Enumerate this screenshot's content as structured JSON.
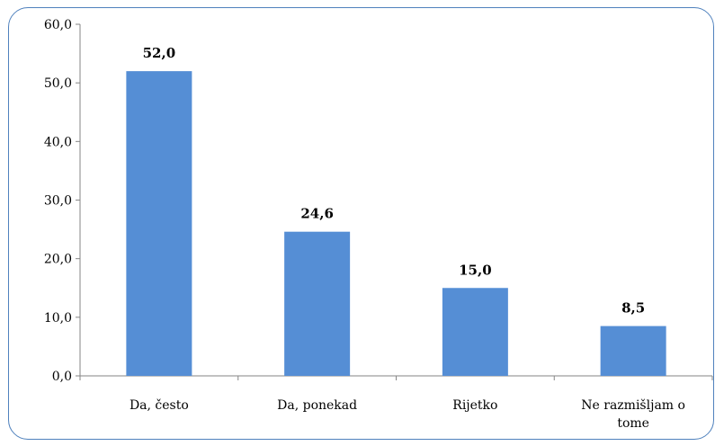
{
  "chart_data": {
    "type": "bar",
    "title": "",
    "xlabel": "",
    "ylabel": "",
    "categories": [
      "Da, često",
      "Da, ponekad",
      "Rijetko",
      "Ne razmišljam o tome"
    ],
    "category_label_lines": [
      [
        "Da, često"
      ],
      [
        "Da, ponekad"
      ],
      [
        "Rijetko"
      ],
      [
        "Ne razmišljam o",
        "tome"
      ]
    ],
    "values": [
      52.0,
      24.6,
      15.0,
      8.5
    ],
    "data_labels": [
      "52,0",
      "24,6",
      "15,0",
      "8,5"
    ],
    "ylim": [
      0,
      60
    ],
    "yticks": [
      0,
      10,
      20,
      30,
      40,
      50,
      60
    ],
    "ytick_labels": [
      "0,0",
      "10,0",
      "20,0",
      "30,0",
      "40,0",
      "50,0",
      "60,0"
    ],
    "bar_color": "#558ed5",
    "border_color": "#4f81bd",
    "grid": false,
    "legend": "none"
  }
}
